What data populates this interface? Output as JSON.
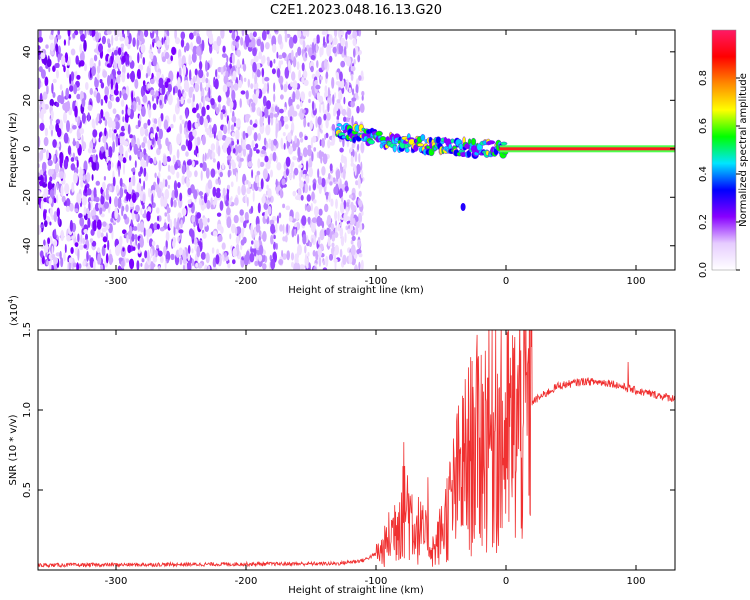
{
  "title": "C2E1.2023.048.16.13.G20",
  "chart_data": [
    {
      "type": "heatmap",
      "xlabel": "Height of straight line (km)",
      "ylabel": "Frequency (Hz)",
      "xlim": [
        -360,
        130
      ],
      "ylim": [
        -50,
        49
      ],
      "xticks": [
        -300,
        -200,
        -100,
        0,
        100
      ],
      "yticks": [
        -40,
        -20,
        0,
        20,
        40
      ],
      "xtick_labels": [
        "-300",
        "-200",
        "-100",
        "0",
        "100"
      ],
      "ytick_labels": [
        "-40",
        "-20",
        "0",
        "20",
        "40"
      ],
      "noise_region_x": [
        -360,
        -110
      ],
      "signal_line": [
        {
          "x": -130,
          "f": 7
        },
        {
          "x": -110,
          "f": 6
        },
        {
          "x": -90,
          "f": 3
        },
        {
          "x": -70,
          "f": 2
        },
        {
          "x": -50,
          "f": 1
        },
        {
          "x": -30,
          "f": 0.5
        },
        {
          "x": 0,
          "f": 0
        },
        {
          "x": 130,
          "f": 0
        }
      ],
      "isolated_blob": {
        "x": -33,
        "f": -24
      },
      "colorbar": {
        "label": "Normalized spectral amplitude",
        "range": [
          0,
          1
        ],
        "ticks": [
          0.0,
          0.2,
          0.4,
          0.6,
          0.8
        ],
        "tick_labels": [
          "0.0",
          "0.2",
          "0.4",
          "0.6",
          "0.8"
        ],
        "colors": [
          "#ffffff",
          "#e6ccff",
          "#8800ff",
          "#0000ff",
          "#00e5ff",
          "#00ff00",
          "#ffff00",
          "#ff8800",
          "#ff0000",
          "#ff1a66"
        ]
      }
    },
    {
      "type": "line",
      "xlabel": "Height of straight line (km)",
      "ylabel": "SNR (10 * v/v)",
      "scale_label": "(x10",
      "scale_exp": "4",
      "scale_close": ")",
      "xlim": [
        -360,
        130
      ],
      "ylim": [
        0,
        1.5
      ],
      "xticks": [
        -300,
        -200,
        -100,
        0,
        100
      ],
      "yticks": [
        0.5,
        1.0,
        1.5
      ],
      "xtick_labels": [
        "-300",
        "-200",
        "-100",
        "0",
        "100"
      ],
      "ytick_labels": [
        "0.5",
        "1.0",
        "1.5"
      ],
      "series": [
        {
          "color": "#f03030",
          "envelope": [
            {
              "x": -360,
              "y": 0.03
            },
            {
              "x": -130,
              "y": 0.04
            },
            {
              "x": -110,
              "y": 0.06
            },
            {
              "x": -95,
              "y": 0.12
            },
            {
              "x": -85,
              "y": 0.28
            },
            {
              "x": -78,
              "y": 0.45
            },
            {
              "x": -70,
              "y": 0.28
            },
            {
              "x": -62,
              "y": 0.2
            },
            {
              "x": -55,
              "y": 0.12
            },
            {
              "x": -45,
              "y": 0.35
            },
            {
              "x": -35,
              "y": 0.6
            },
            {
              "x": -25,
              "y": 0.75
            },
            {
              "x": -15,
              "y": 0.85
            },
            {
              "x": -5,
              "y": 0.8
            },
            {
              "x": 5,
              "y": 0.85
            },
            {
              "x": 20,
              "y": 1.05
            },
            {
              "x": 40,
              "y": 1.15
            },
            {
              "x": 60,
              "y": 1.18
            },
            {
              "x": 80,
              "y": 1.17
            },
            {
              "x": 100,
              "y": 1.12
            },
            {
              "x": 130,
              "y": 1.07
            }
          ],
          "spikes": [
            {
              "x": -78,
              "y": 0.65
            },
            {
              "x": -60,
              "y": 0.58
            },
            {
              "x": -38,
              "y": 0.93
            },
            {
              "x": -25,
              "y": 1.03
            },
            {
              "x": -14,
              "y": 1.2
            },
            {
              "x": -8,
              "y": 1.5
            },
            {
              "x": 94,
              "y": 1.3
            }
          ]
        }
      ]
    }
  ]
}
